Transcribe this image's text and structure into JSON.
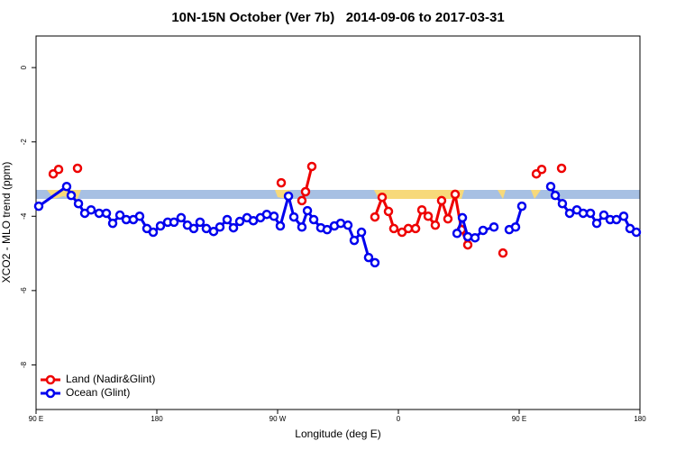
{
  "chart_data": {
    "type": "line",
    "title": "10N-15N October (Ver 7b)   2014-09-06 to 2017-03-31",
    "x_label": "Longitude (deg E)",
    "y_label": "XCO2 - MLO trend (ppm)",
    "xlim": [
      90,
      540
    ],
    "xticks": [
      {
        "value": 90,
        "label": "90 E"
      },
      180,
      {
        "value": 270,
        "label": "90 W"
      },
      {
        "value": 360,
        "label": "0"
      },
      {
        "value": 450,
        "label": "90 E"
      },
      {
        "value": 540,
        "label": "180"
      }
    ],
    "ylim": [
      -9.2,
      0.85
    ],
    "yticks": [
      0,
      -2,
      -4,
      -6,
      -8
    ],
    "legend": "bottom-left",
    "series": [
      {
        "name": "Land (Nadir&Glint)",
        "color": "#ee0000",
        "x": [
          102.8,
          106.8,
          null,
          120.9,
          null,
          272.7,
          null,
          288.1,
          290.8,
          295.5,
          null,
          342.5,
          347.9,
          352.6,
          356.6,
          362.7,
          367.4,
          372.8,
          377.5,
          382.2,
          387.5,
          392.2,
          396.9,
          402.3,
          407.0,
          411.7,
          null,
          437.9,
          null,
          462.8,
          466.8,
          null,
          481.6
        ],
        "values": [
          -2.86,
          -2.74,
          null,
          -2.71,
          null,
          -3.1,
          null,
          -3.58,
          -3.34,
          -2.66,
          null,
          -4.02,
          -3.49,
          -3.87,
          -4.33,
          -4.43,
          -4.33,
          -4.33,
          -3.83,
          -4.0,
          -4.24,
          -3.58,
          -4.07,
          -3.41,
          -4.36,
          -4.77,
          null,
          -4.99,
          null,
          -2.86,
          -2.74,
          null,
          -2.71
        ]
      },
      {
        "name": "Ocean (Glint)",
        "color": "#0000ee",
        "x": [
          92.0,
          112.8,
          116.2,
          121.6,
          126.3,
          131.0,
          137.0,
          142.4,
          147.1,
          152.5,
          157.2,
          162.5,
          167.2,
          172.6,
          177.3,
          182.7,
          188.1,
          192.8,
          198.1,
          202.8,
          207.5,
          212.2,
          216.9,
          222.3,
          227.0,
          232.4,
          237.1,
          241.8,
          247.2,
          251.9,
          257.2,
          261.9,
          267.3,
          272.0,
          278.1,
          282.1,
          288.1,
          292.2,
          296.9,
          302.2,
          306.9,
          312.3,
          317.0,
          322.4,
          327.1,
          332.5,
          337.8,
          342.5,
          null,
          403.7,
          407.7,
          411.7,
          417.1,
          423.1,
          431.2,
          null,
          442.6,
          447.3,
          452.0,
          null,
          473.5,
          476.9,
          482.2,
          487.6,
          493.0,
          497.7,
          503.1,
          507.8,
          513.1,
          517.8,
          522.5,
          527.9,
          532.6,
          537.3
        ],
        "values": [
          -3.73,
          -3.2,
          -3.44,
          -3.66,
          -3.92,
          -3.83,
          -3.92,
          -3.92,
          -4.19,
          -3.97,
          -4.09,
          -4.09,
          -4.0,
          -4.33,
          -4.43,
          -4.26,
          -4.16,
          -4.16,
          -4.04,
          -4.24,
          -4.33,
          -4.16,
          -4.33,
          -4.41,
          -4.29,
          -4.09,
          -4.31,
          -4.14,
          -4.04,
          -4.12,
          -4.04,
          -3.95,
          -4.0,
          -4.26,
          -3.46,
          -4.02,
          -4.29,
          -3.85,
          -4.09,
          -4.31,
          -4.36,
          -4.26,
          -4.19,
          -4.24,
          -4.65,
          -4.43,
          -5.11,
          -5.25,
          null,
          -4.46,
          -4.04,
          -4.55,
          -4.58,
          -4.38,
          -4.29,
          null,
          -4.36,
          -4.29,
          -3.73,
          null,
          -3.2,
          -3.44,
          -3.66,
          -3.92,
          -3.83,
          -3.92,
          -3.92,
          -4.19,
          -3.97,
          -4.09,
          -4.09,
          -4.0,
          -4.33,
          -4.43
        ]
      }
    ]
  }
}
